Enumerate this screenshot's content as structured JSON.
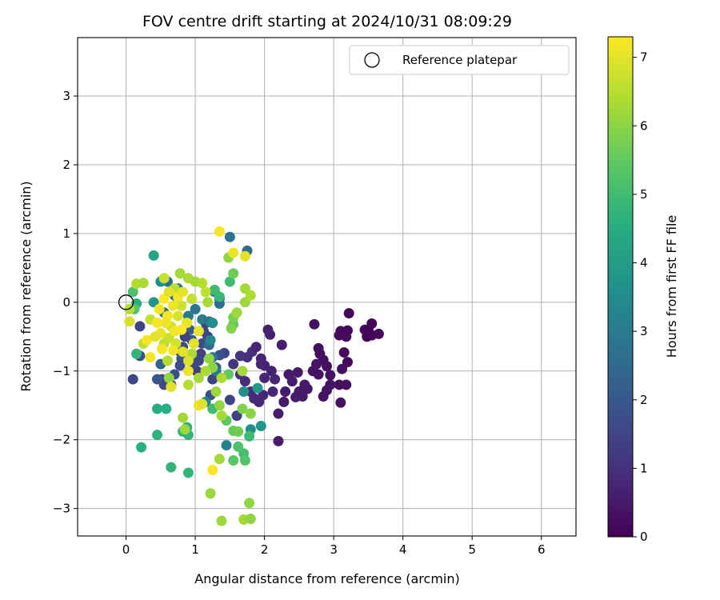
{
  "chart_data": {
    "type": "scatter",
    "title": "FOV centre drift starting at 2024/10/31 08:09:29",
    "xlabel": "Angular distance from reference (arcmin)",
    "ylabel": "Rotation from reference (arcmin)",
    "xlim": [
      -0.7,
      6.5
    ],
    "ylim": [
      -3.4,
      3.85
    ],
    "xticks": [
      "0",
      "1",
      "2",
      "3",
      "4",
      "5",
      "6"
    ],
    "yticks": [
      "−3",
      "−2",
      "−1",
      "0",
      "1",
      "2",
      "3"
    ],
    "grid": true,
    "legend": {
      "placement": "top-right",
      "entries": [
        "Reference platepar"
      ]
    },
    "reference_point": {
      "x": 0,
      "y": 0
    },
    "colorbar": {
      "label": "Hours from first FF file",
      "min": 0,
      "max": 7.3,
      "ticks": [
        "0",
        "1",
        "2",
        "3",
        "4",
        "5",
        "6",
        "7"
      ],
      "colormap": "viridis"
    },
    "points": [
      [
        3.65,
        -0.46,
        0.1
      ],
      [
        3.55,
        -0.31,
        0.1
      ],
      [
        3.5,
        -0.4,
        0.1
      ],
      [
        3.55,
        -0.48,
        0.1
      ],
      [
        3.45,
        -0.4,
        0.1
      ],
      [
        3.48,
        -0.5,
        0.1
      ],
      [
        3.22,
        -0.16,
        0.1
      ],
      [
        3.1,
        -0.42,
        0.2
      ],
      [
        3.18,
        -0.5,
        0.2
      ],
      [
        3.2,
        -0.41,
        0.2
      ],
      [
        3.08,
        -0.48,
        0.2
      ],
      [
        3.15,
        -0.73,
        0.2
      ],
      [
        3.2,
        -0.87,
        0.2
      ],
      [
        3.12,
        -0.97,
        0.3
      ],
      [
        3.08,
        -1.2,
        0.3
      ],
      [
        3.1,
        -1.46,
        0.3
      ],
      [
        3.18,
        -1.2,
        0.3
      ],
      [
        2.95,
        -1.2,
        0.4
      ],
      [
        2.9,
        -1.28,
        0.4
      ],
      [
        2.85,
        -1.37,
        0.4
      ],
      [
        2.95,
        -1.06,
        0.4
      ],
      [
        2.9,
        -0.93,
        0.3
      ],
      [
        2.85,
        -0.84,
        0.3
      ],
      [
        2.8,
        -0.75,
        0.3
      ],
      [
        2.78,
        -0.67,
        0.3
      ],
      [
        2.72,
        -0.32,
        0.3
      ],
      [
        2.75,
        -0.9,
        0.4
      ],
      [
        2.7,
        -1.0,
        0.4
      ],
      [
        2.78,
        -1.05,
        0.4
      ],
      [
        2.62,
        -1.26,
        0.5
      ],
      [
        2.58,
        -1.2,
        0.5
      ],
      [
        2.5,
        -1.3,
        0.5
      ],
      [
        2.55,
        -1.37,
        0.5
      ],
      [
        2.45,
        -1.38,
        0.6
      ],
      [
        2.4,
        -1.15,
        0.6
      ],
      [
        2.35,
        -1.05,
        0.5
      ],
      [
        2.48,
        -1.02,
        0.5
      ],
      [
        2.3,
        -1.3,
        0.5
      ],
      [
        2.28,
        -1.45,
        0.5
      ],
      [
        2.2,
        -1.62,
        0.6
      ],
      [
        2.25,
        -0.62,
        0.6
      ],
      [
        2.05,
        -0.4,
        0.7
      ],
      [
        2.08,
        -0.47,
        0.7
      ],
      [
        1.95,
        -0.82,
        0.7
      ],
      [
        2.0,
        -0.92,
        0.7
      ],
      [
        2.1,
        -1.0,
        0.7
      ],
      [
        2.15,
        -1.12,
        0.8
      ],
      [
        2.12,
        -1.3,
        0.8
      ],
      [
        1.98,
        -1.35,
        0.8
      ],
      [
        1.92,
        -1.45,
        0.8
      ],
      [
        1.85,
        -1.4,
        0.9
      ],
      [
        1.8,
        -1.3,
        0.9
      ],
      [
        1.72,
        -1.15,
        0.9
      ],
      [
        1.65,
        -1.05,
        1.0
      ],
      [
        1.75,
        -0.8,
        1.0
      ],
      [
        1.82,
        -0.72,
        1.0
      ],
      [
        1.88,
        -0.65,
        0.8
      ],
      [
        1.95,
        -0.9,
        0.8
      ],
      [
        2.0,
        -1.1,
        0.8
      ],
      [
        2.2,
        -2.02,
        0.6
      ],
      [
        1.65,
        -0.78,
        1.1
      ],
      [
        1.55,
        -0.9,
        1.2
      ],
      [
        1.6,
        -1.65,
        1.4
      ],
      [
        1.5,
        -1.42,
        1.5
      ],
      [
        1.42,
        -0.74,
        1.6
      ],
      [
        1.35,
        -0.77,
        1.8
      ],
      [
        1.3,
        -0.95,
        2.0
      ],
      [
        1.25,
        -1.12,
        1.5
      ],
      [
        1.22,
        -1.35,
        1.8
      ],
      [
        1.18,
        -0.5,
        1.3
      ],
      [
        1.15,
        -0.3,
        1.2
      ],
      [
        1.1,
        -0.6,
        1.7
      ],
      [
        1.12,
        -0.42,
        1.6
      ],
      [
        1.08,
        -0.75,
        1.4
      ],
      [
        1.05,
        -0.85,
        1.5
      ],
      [
        1.02,
        -1.0,
        1.3
      ],
      [
        0.98,
        -0.9,
        1.6
      ],
      [
        0.95,
        -0.55,
        2.0
      ],
      [
        0.92,
        -0.4,
        2.2
      ],
      [
        0.88,
        -0.3,
        1.8
      ],
      [
        0.85,
        -0.5,
        1.4
      ],
      [
        0.82,
        -0.65,
        1.6
      ],
      [
        0.8,
        -0.82,
        1.9
      ],
      [
        0.78,
        -0.92,
        1.7
      ],
      [
        0.75,
        -0.7,
        1.5
      ],
      [
        0.7,
        -1.05,
        1.8
      ],
      [
        0.65,
        -1.2,
        1.4
      ],
      [
        0.55,
        -1.2,
        1.6
      ],
      [
        0.52,
        -1.12,
        1.5
      ],
      [
        0.45,
        -1.12,
        2.0
      ],
      [
        0.1,
        -1.12,
        1.6
      ],
      [
        0.2,
        -0.78,
        1.8
      ],
      [
        0.2,
        -0.35,
        1.5
      ],
      [
        0.5,
        -0.9,
        2.4
      ],
      [
        0.55,
        -0.15,
        2.6
      ],
      [
        0.6,
        0.3,
        2.7
      ],
      [
        0.7,
        0.1,
        2.8
      ],
      [
        0.75,
        0.2,
        2.9
      ],
      [
        0.9,
        -0.2,
        3.0
      ],
      [
        1.0,
        -0.1,
        2.9
      ],
      [
        1.1,
        -0.25,
        3.1
      ],
      [
        1.2,
        -0.28,
        2.8
      ],
      [
        1.28,
        0.15,
        3.3
      ],
      [
        1.35,
        0.05,
        2.7
      ],
      [
        1.2,
        -0.62,
        2.5
      ],
      [
        1.25,
        -0.8,
        2.9
      ],
      [
        1.5,
        0.95,
        2.8
      ],
      [
        1.75,
        0.75,
        2.5
      ],
      [
        1.3,
        -1.0,
        3.0
      ],
      [
        1.45,
        -2.08,
        3.2
      ],
      [
        0.5,
        0.3,
        3.5
      ],
      [
        0.4,
        0.0,
        3.8
      ],
      [
        1.35,
        -0.02,
        2.6
      ],
      [
        1.15,
        -1.45,
        3.3
      ],
      [
        1.7,
        -1.3,
        3.6
      ],
      [
        1.8,
        -1.85,
        3.6
      ],
      [
        1.95,
        -1.8,
        3.8
      ],
      [
        1.9,
        -1.25,
        3.8
      ],
      [
        1.25,
        -0.3,
        3.6
      ],
      [
        1.22,
        -0.55,
        3.4
      ],
      [
        0.4,
        0.68,
        4.3
      ],
      [
        0.15,
        -0.02,
        4.6
      ],
      [
        0.1,
        0.15,
        5.2
      ],
      [
        0.12,
        -0.1,
        5.3
      ],
      [
        0.15,
        -0.75,
        4.8
      ],
      [
        0.22,
        -2.11,
        4.6
      ],
      [
        0.45,
        -1.55,
        4.5
      ],
      [
        0.45,
        -1.93,
        4.7
      ],
      [
        0.58,
        -1.55,
        4.6
      ],
      [
        0.65,
        -2.4,
        4.8
      ],
      [
        0.9,
        -2.48,
        4.8
      ],
      [
        0.9,
        -1.93,
        4.8
      ],
      [
        0.88,
        -1.82,
        4.6
      ],
      [
        0.82,
        -1.88,
        4.7
      ],
      [
        1.25,
        -1.55,
        5.0
      ],
      [
        1.28,
        0.18,
        5.0
      ],
      [
        1.35,
        0.08,
        4.9
      ],
      [
        1.5,
        0.3,
        5.0
      ],
      [
        1.7,
        -2.2,
        5.1
      ],
      [
        1.72,
        -2.3,
        5.3
      ],
      [
        1.78,
        -1.95,
        5.0
      ],
      [
        1.55,
        -2.3,
        5.4
      ],
      [
        1.62,
        -2.1,
        5.2
      ],
      [
        1.45,
        -1.72,
        5.5
      ],
      [
        1.55,
        -1.87,
        5.6
      ],
      [
        1.62,
        -1.88,
        5.7
      ],
      [
        1.68,
        -1.55,
        5.9
      ],
      [
        1.8,
        -1.62,
        6.0
      ],
      [
        1.48,
        -1.05,
        5.5
      ],
      [
        1.55,
        -0.32,
        5.6
      ],
      [
        1.55,
        -0.22,
        5.8
      ],
      [
        1.52,
        -0.38,
        5.9
      ],
      [
        1.55,
        0.42,
        5.7
      ],
      [
        1.48,
        0.65,
        6.1
      ],
      [
        1.6,
        -0.15,
        6.2
      ],
      [
        1.72,
        0.0,
        6.2
      ],
      [
        1.72,
        0.2,
        6.3
      ],
      [
        1.8,
        0.1,
        6.4
      ],
      [
        1.38,
        -1.1,
        6.4
      ],
      [
        1.3,
        -1.3,
        6.2
      ],
      [
        1.35,
        -1.5,
        6.1
      ],
      [
        1.38,
        -1.65,
        6.3
      ],
      [
        1.22,
        -2.78,
        6.2
      ],
      [
        1.35,
        -2.28,
        6.3
      ],
      [
        1.38,
        -3.18,
        6.2
      ],
      [
        1.7,
        -3.16,
        6.3
      ],
      [
        1.8,
        -3.15,
        6.1
      ],
      [
        1.78,
        -2.92,
        6.1
      ],
      [
        1.68,
        -1.0,
        6.3
      ],
      [
        1.25,
        -0.95,
        6.0
      ],
      [
        1.2,
        -0.82,
        6.1
      ],
      [
        1.15,
        -1.0,
        6.4
      ],
      [
        1.05,
        -1.1,
        6.3
      ],
      [
        0.9,
        -1.2,
        6.5
      ],
      [
        0.95,
        -0.75,
        6.4
      ],
      [
        0.82,
        -1.68,
        6.3
      ],
      [
        0.85,
        -1.85,
        6.2
      ],
      [
        0.62,
        -1.1,
        6.1
      ],
      [
        0.6,
        -0.85,
        6.5
      ],
      [
        0.55,
        -0.6,
        6.6
      ],
      [
        0.25,
        -0.6,
        6.6
      ],
      [
        0.35,
        -0.25,
        6.7
      ],
      [
        0.15,
        0.27,
        6.5
      ],
      [
        0.25,
        0.28,
        6.4
      ],
      [
        0.05,
        -0.1,
        6.5
      ],
      [
        0.05,
        -0.28,
        6.9
      ],
      [
        0.55,
        0.35,
        6.7
      ],
      [
        0.7,
        0.2,
        6.6
      ],
      [
        0.78,
        0.42,
        6.3
      ],
      [
        0.9,
        0.35,
        6.4
      ],
      [
        1.0,
        0.3,
        6.3
      ],
      [
        1.1,
        0.28,
        6.5
      ],
      [
        1.15,
        0.15,
        6.6
      ],
      [
        1.18,
        0.0,
        6.4
      ],
      [
        0.95,
        0.05,
        6.7
      ],
      [
        0.8,
        -0.05,
        6.8
      ],
      [
        0.75,
        -0.2,
        6.9
      ],
      [
        0.65,
        -0.35,
        6.8
      ],
      [
        0.62,
        -0.52,
        6.7
      ],
      [
        0.72,
        -0.6,
        6.8
      ],
      [
        0.82,
        -0.72,
        7.0
      ],
      [
        0.9,
        -0.85,
        6.9
      ],
      [
        0.98,
        -0.6,
        7.0
      ],
      [
        1.05,
        -0.42,
        7.1
      ],
      [
        0.5,
        -0.45,
        7.1
      ],
      [
        0.45,
        -0.3,
        7.2
      ],
      [
        0.48,
        -0.1,
        7.2
      ],
      [
        0.55,
        0.05,
        7.3
      ],
      [
        0.6,
        -0.2,
        7.2
      ],
      [
        0.68,
        -0.05,
        7.1
      ],
      [
        0.75,
        0.08,
        7.2
      ],
      [
        0.82,
        0.15,
        7.0
      ],
      [
        0.88,
        -0.3,
        7.1
      ],
      [
        0.52,
        -0.68,
        7.2
      ],
      [
        0.3,
        -0.55,
        7.2
      ],
      [
        0.35,
        -0.8,
        7.2
      ],
      [
        0.65,
        -1.23,
        7.0
      ],
      [
        0.9,
        -1.0,
        7.1
      ],
      [
        1.05,
        -1.5,
        7.1
      ],
      [
        1.25,
        -2.44,
        7.3
      ],
      [
        1.35,
        1.03,
        7.2
      ],
      [
        1.72,
        0.67,
        7.0
      ],
      [
        1.55,
        0.72,
        7.1
      ],
      [
        1.1,
        -1.48,
        7.0
      ],
      [
        0.58,
        -0.3,
        7.1
      ],
      [
        0.7,
        -0.42,
        7.2
      ],
      [
        0.42,
        -0.5,
        7.0
      ],
      [
        0.62,
        0.15,
        7.0
      ],
      [
        0.68,
        -0.7,
        7.2
      ],
      [
        0.8,
        -0.4,
        7.3
      ]
    ]
  }
}
